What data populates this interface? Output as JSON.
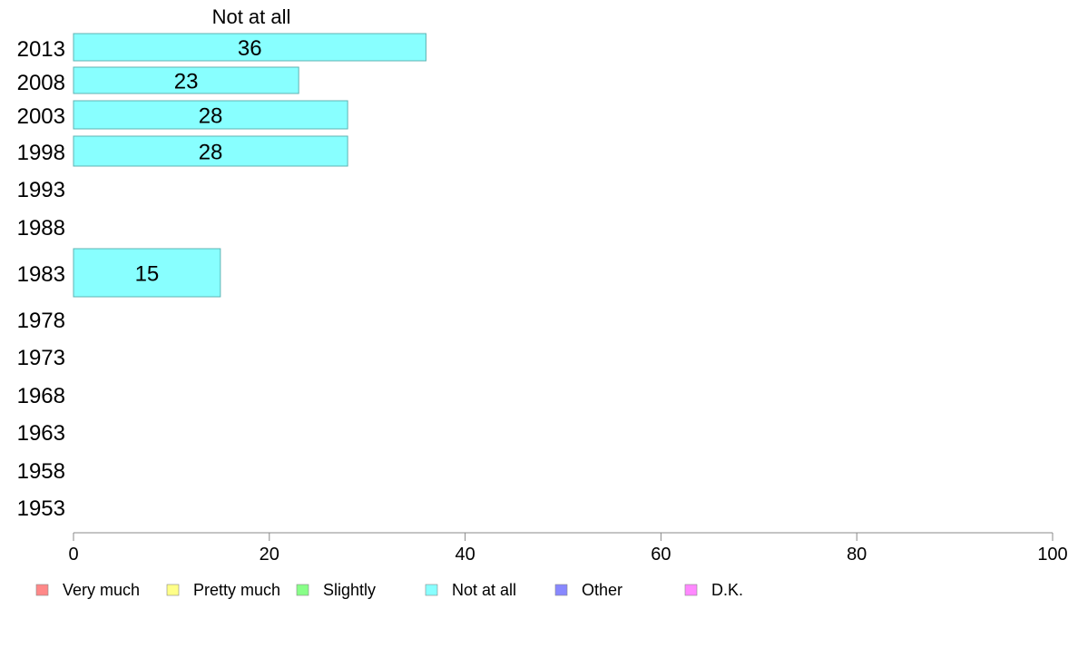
{
  "chart_data": {
    "type": "bar",
    "orientation": "horizontal",
    "series_title": "Not at all",
    "categories": [
      "2013",
      "2008",
      "2003",
      "1998",
      "1993",
      "1988",
      "1983",
      "1978",
      "1973",
      "1968",
      "1963",
      "1958",
      "1953"
    ],
    "series": [
      {
        "name": "Not at all",
        "values": [
          36,
          23,
          28,
          28,
          null,
          null,
          15,
          null,
          null,
          null,
          null,
          null,
          null
        ],
        "labels": [
          "36",
          "23",
          "28",
          "28",
          "",
          "",
          "15",
          "",
          "",
          "",
          "",
          "",
          ""
        ]
      }
    ],
    "xlim": [
      0,
      100
    ],
    "xticks": [
      "0",
      "20",
      "40",
      "60",
      "80",
      "100"
    ],
    "grid": false,
    "legend_position": "bottom",
    "legend": [
      {
        "label": "Very much",
        "color": "#ff8888"
      },
      {
        "label": "Pretty much",
        "color": "#ffff88"
      },
      {
        "label": "Slightly",
        "color": "#88ff88"
      },
      {
        "label": "Not at all",
        "color": "#88ffff"
      },
      {
        "label": "Other",
        "color": "#8888ff"
      },
      {
        "label": "D.K.",
        "color": "#ff88ff"
      }
    ],
    "bar_color": "#88ffff",
    "bar_edge_color": "#5fb3b3"
  }
}
